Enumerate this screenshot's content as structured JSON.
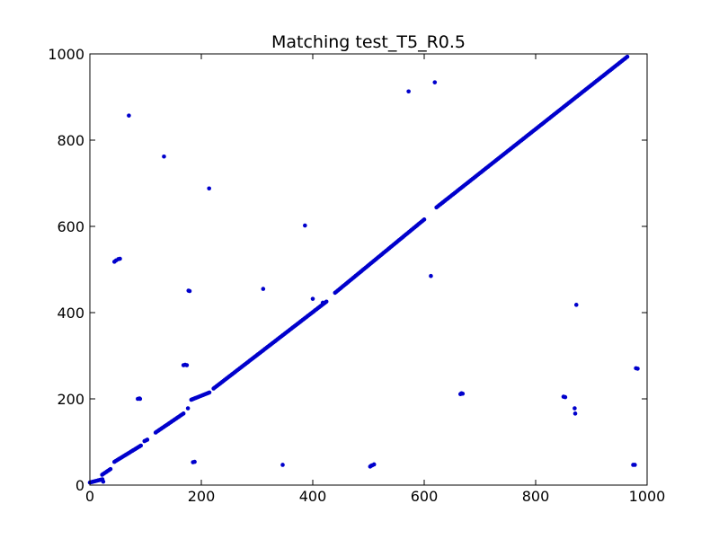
{
  "chart_data": {
    "type": "scatter",
    "title": "Matching test_T5_R0.5",
    "xlabel": "",
    "ylabel": "",
    "xlim": [
      0,
      1000
    ],
    "ylim": [
      0,
      1000
    ],
    "xticks": [
      "0",
      "200",
      "400",
      "600",
      "800",
      "1000"
    ],
    "yticks": [
      "0",
      "200",
      "400",
      "600",
      "800",
      "1000"
    ],
    "grid": false,
    "marker_color": "#0000cc",
    "diagonal_segments": [
      [
        0,
        6,
        24,
        14
      ],
      [
        22,
        24,
        38,
        38
      ],
      [
        44,
        54,
        92,
        92
      ],
      [
        98,
        102,
        104,
        106
      ],
      [
        118,
        122,
        168,
        166
      ],
      [
        182,
        198,
        215,
        215
      ],
      [
        222,
        224,
        425,
        426
      ],
      [
        440,
        446,
        600,
        616
      ],
      [
        622,
        644,
        965,
        994
      ]
    ],
    "outliers": [
      [
        70,
        857
      ],
      [
        133,
        762
      ],
      [
        214,
        688
      ],
      [
        386,
        602
      ],
      [
        572,
        913
      ],
      [
        619,
        934
      ],
      [
        44,
        518
      ],
      [
        47,
        521
      ],
      [
        51,
        524
      ],
      [
        54,
        525
      ],
      [
        177,
        451
      ],
      [
        179,
        450
      ],
      [
        311,
        455
      ],
      [
        612,
        485
      ],
      [
        873,
        418
      ],
      [
        168,
        278
      ],
      [
        171,
        279
      ],
      [
        174,
        278
      ],
      [
        86,
        200
      ],
      [
        89,
        201
      ],
      [
        90,
        200
      ],
      [
        176,
        178
      ],
      [
        400,
        432
      ],
      [
        418,
        423
      ],
      [
        665,
        211
      ],
      [
        667,
        213
      ],
      [
        669,
        212
      ],
      [
        850,
        205
      ],
      [
        853,
        204
      ],
      [
        870,
        178
      ],
      [
        871,
        166
      ],
      [
        980,
        271
      ],
      [
        983,
        270
      ],
      [
        185,
        53
      ],
      [
        188,
        54
      ],
      [
        346,
        47
      ],
      [
        503,
        43
      ],
      [
        505,
        45
      ],
      [
        507,
        46
      ],
      [
        510,
        48
      ],
      [
        975,
        47
      ],
      [
        978,
        47
      ],
      [
        24,
        8
      ]
    ]
  }
}
